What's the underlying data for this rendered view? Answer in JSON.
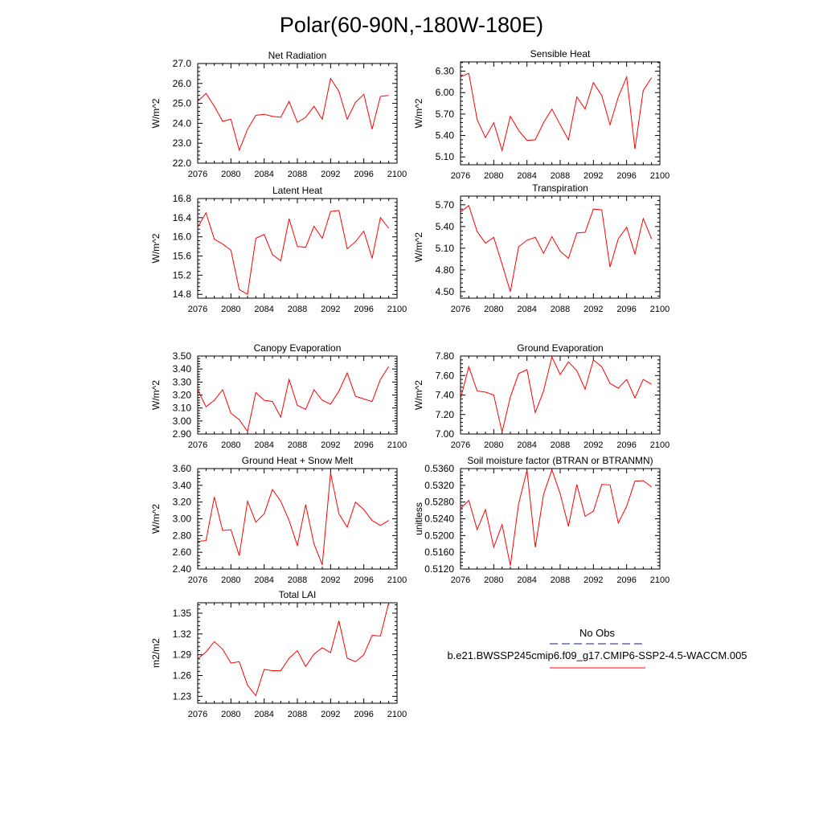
{
  "page": {
    "title": "Polar(60-90N,-180W-180E)"
  },
  "colors": {
    "model_line": "#ff0000",
    "obs_line": "#1a1a8c",
    "axis": "#000000",
    "background": "#ffffff"
  },
  "legend": {
    "obs_label": "No Obs",
    "model_label": "b.e21.BWSSP245cmip6.f09_g17.CMIP6-SSP2-4.5-WACCM.005"
  },
  "chart_data": [
    {
      "type": "line",
      "title": "Net Radiation",
      "ylabel": "W/m^2",
      "xlabel": "",
      "xlim": [
        2076,
        2100
      ],
      "ylim": [
        22.0,
        27.0
      ],
      "xticks": [
        "2076",
        "2080",
        "2084",
        "2088",
        "2092",
        "2096",
        "2100"
      ],
      "yticks": [
        "22.0",
        "23.0",
        "24.0",
        "25.0",
        "26.0",
        "27.0"
      ],
      "x": [
        2076,
        2077,
        2078,
        2079,
        2080,
        2081,
        2082,
        2083,
        2084,
        2085,
        2086,
        2087,
        2088,
        2089,
        2090,
        2091,
        2092,
        2093,
        2094,
        2095,
        2096,
        2097,
        2098,
        2099
      ],
      "series": [
        {
          "values": [
            25.1,
            25.5,
            24.85,
            24.1,
            24.2,
            22.65,
            23.7,
            24.4,
            24.45,
            24.35,
            24.3,
            25.1,
            24.05,
            24.3,
            24.85,
            24.2,
            26.25,
            25.6,
            24.2,
            25.05,
            25.45,
            23.7,
            25.35,
            25.4
          ]
        }
      ]
    },
    {
      "type": "line",
      "title": "Sensible Heat",
      "ylabel": "W/m^2",
      "xlabel": "",
      "xlim": [
        2076,
        2100
      ],
      "ylim": [
        4.99,
        6.43
      ],
      "xticks": [
        "2076",
        "2080",
        "2084",
        "2088",
        "2092",
        "2096",
        "2100"
      ],
      "yticks": [
        "5.10",
        "5.40",
        "5.70",
        "6.00",
        "6.30"
      ],
      "x": [
        2076,
        2077,
        2078,
        2079,
        2080,
        2081,
        2082,
        2083,
        2084,
        2085,
        2086,
        2087,
        2088,
        2089,
        2090,
        2091,
        2092,
        2093,
        2094,
        2095,
        2096,
        2097,
        2098,
        2099
      ],
      "series": [
        {
          "values": [
            6.22,
            6.27,
            5.62,
            5.37,
            5.58,
            5.19,
            5.67,
            5.47,
            5.33,
            5.34,
            5.58,
            5.77,
            5.55,
            5.34,
            5.94,
            5.77,
            6.14,
            5.96,
            5.55,
            5.94,
            6.22,
            5.21,
            6.03,
            6.21
          ]
        }
      ]
    },
    {
      "type": "line",
      "title": "Latent Heat",
      "ylabel": "W/m^2",
      "xlabel": "",
      "xlim": [
        2076,
        2100
      ],
      "ylim": [
        14.72,
        16.8
      ],
      "xticks": [
        "2076",
        "2080",
        "2084",
        "2088",
        "2092",
        "2096",
        "2100"
      ],
      "yticks": [
        "14.8",
        "15.2",
        "15.6",
        "16.0",
        "16.4",
        "16.8"
      ],
      "x": [
        2076,
        2077,
        2078,
        2079,
        2080,
        2081,
        2082,
        2083,
        2084,
        2085,
        2086,
        2087,
        2088,
        2089,
        2090,
        2091,
        2092,
        2093,
        2094,
        2095,
        2096,
        2097,
        2098,
        2099
      ],
      "series": [
        {
          "values": [
            16.2,
            16.5,
            15.95,
            15.85,
            15.72,
            14.9,
            14.8,
            15.97,
            16.05,
            15.63,
            15.5,
            16.38,
            15.8,
            15.78,
            16.22,
            15.97,
            16.53,
            16.55,
            15.75,
            15.9,
            16.12,
            15.55,
            16.4,
            16.18
          ]
        }
      ]
    },
    {
      "type": "line",
      "title": "Transpiration",
      "ylabel": "W/m^2",
      "xlabel": "",
      "xlim": [
        2076,
        2100
      ],
      "ylim": [
        4.41,
        5.82
      ],
      "xticks": [
        "2076",
        "2080",
        "2084",
        "2088",
        "2092",
        "2096",
        "2100"
      ],
      "yticks": [
        "4.50",
        "4.80",
        "5.10",
        "5.40",
        "5.70"
      ],
      "x": [
        2076,
        2077,
        2078,
        2079,
        2080,
        2081,
        2082,
        2083,
        2084,
        2085,
        2086,
        2087,
        2088,
        2089,
        2090,
        2091,
        2092,
        2093,
        2094,
        2095,
        2096,
        2097,
        2098,
        2099
      ],
      "series": [
        {
          "values": [
            5.6,
            5.69,
            5.33,
            5.17,
            5.25,
            4.88,
            4.5,
            5.12,
            5.21,
            5.25,
            5.03,
            5.26,
            5.06,
            4.96,
            5.31,
            5.32,
            5.64,
            5.63,
            4.84,
            5.23,
            5.39,
            5.02,
            5.51,
            5.23
          ]
        }
      ]
    },
    {
      "type": "line",
      "title": "Canopy Evaporation",
      "ylabel": "W/m^2",
      "xlabel": "",
      "xlim": [
        2076,
        2100
      ],
      "ylim": [
        2.9,
        3.5
      ],
      "xticks": [
        "2076",
        "2080",
        "2084",
        "2088",
        "2092",
        "2096",
        "2100"
      ],
      "yticks": [
        "2.90",
        "3.00",
        "3.10",
        "3.20",
        "3.30",
        "3.40",
        "3.50"
      ],
      "x": [
        2076,
        2077,
        2078,
        2079,
        2080,
        2081,
        2082,
        2083,
        2084,
        2085,
        2086,
        2087,
        2088,
        2089,
        2090,
        2091,
        2092,
        2093,
        2094,
        2095,
        2096,
        2097,
        2098,
        2099
      ],
      "series": [
        {
          "values": [
            3.24,
            3.11,
            3.16,
            3.24,
            3.06,
            3.01,
            2.92,
            3.22,
            3.16,
            3.15,
            3.03,
            3.32,
            3.12,
            3.09,
            3.24,
            3.16,
            3.13,
            3.23,
            3.37,
            3.19,
            3.17,
            3.15,
            3.32,
            3.42
          ]
        }
      ]
    },
    {
      "type": "line",
      "title": "Ground Evaporation",
      "ylabel": "W/m^2",
      "xlabel": "",
      "xlim": [
        2076,
        2100
      ],
      "ylim": [
        7.0,
        7.8
      ],
      "xticks": [
        "2076",
        "2080",
        "2084",
        "2088",
        "2092",
        "2096",
        "2100"
      ],
      "yticks": [
        "7.00",
        "7.20",
        "7.40",
        "7.60",
        "7.80"
      ],
      "x": [
        2076,
        2077,
        2078,
        2079,
        2080,
        2081,
        2082,
        2083,
        2084,
        2085,
        2086,
        2087,
        2088,
        2089,
        2090,
        2091,
        2092,
        2093,
        2094,
        2095,
        2096,
        2097,
        2098,
        2099
      ],
      "series": [
        {
          "values": [
            7.36,
            7.69,
            7.44,
            7.43,
            7.4,
            7.02,
            7.38,
            7.62,
            7.66,
            7.22,
            7.44,
            7.79,
            7.61,
            7.74,
            7.65,
            7.46,
            7.76,
            7.69,
            7.52,
            7.47,
            7.56,
            7.37,
            7.56,
            7.51
          ]
        }
      ]
    },
    {
      "type": "line",
      "title": "Ground Heat + Snow Melt",
      "ylabel": "W/m^2",
      "xlabel": "",
      "xlim": [
        2076,
        2100
      ],
      "ylim": [
        2.4,
        3.6
      ],
      "xticks": [
        "2076",
        "2080",
        "2084",
        "2088",
        "2092",
        "2096",
        "2100"
      ],
      "yticks": [
        "2.40",
        "2.60",
        "2.80",
        "3.00",
        "3.20",
        "3.40",
        "3.60"
      ],
      "x": [
        2076,
        2077,
        2078,
        2079,
        2080,
        2081,
        2082,
        2083,
        2084,
        2085,
        2086,
        2087,
        2088,
        2089,
        2090,
        2091,
        2092,
        2093,
        2094,
        2095,
        2096,
        2097,
        2098,
        2099
      ],
      "series": [
        {
          "values": [
            2.73,
            2.74,
            3.26,
            2.86,
            2.87,
            2.56,
            3.21,
            2.96,
            3.06,
            3.35,
            3.21,
            2.98,
            2.68,
            3.17,
            2.7,
            2.45,
            3.55,
            3.06,
            2.9,
            3.2,
            3.11,
            2.98,
            2.92,
            2.98
          ]
        }
      ]
    },
    {
      "type": "line",
      "title": "Soil moisture factor (BTRAN or BTRANMN)",
      "ylabel": "unitless",
      "xlabel": "",
      "xlim": [
        2076,
        2100
      ],
      "ylim": [
        0.512,
        0.536
      ],
      "xticks": [
        "2076",
        "2080",
        "2084",
        "2088",
        "2092",
        "2096",
        "2100"
      ],
      "yticks": [
        "0.5120",
        "0.5160",
        "0.5200",
        "0.5240",
        "0.5280",
        "0.5320",
        "0.5360"
      ],
      "x": [
        2076,
        2077,
        2078,
        2079,
        2080,
        2081,
        2082,
        2083,
        2084,
        2085,
        2086,
        2087,
        2088,
        2089,
        2090,
        2091,
        2092,
        2093,
        2094,
        2095,
        2096,
        2097,
        2098,
        2099
      ],
      "series": [
        {
          "values": [
            0.5264,
            0.5284,
            0.5214,
            0.5262,
            0.5172,
            0.5226,
            0.5128,
            0.5276,
            0.5356,
            0.5172,
            0.5298,
            0.5357,
            0.53,
            0.5222,
            0.5322,
            0.5246,
            0.5258,
            0.5322,
            0.5321,
            0.523,
            0.527,
            0.533,
            0.5331,
            0.5316
          ]
        }
      ]
    },
    {
      "type": "line",
      "title": "Total LAI",
      "ylabel": "m2/m2",
      "xlabel": "",
      "xlim": [
        2076,
        2100
      ],
      "ylim": [
        1.22,
        1.365
      ],
      "xticks": [
        "2076",
        "2080",
        "2084",
        "2088",
        "2092",
        "2096",
        "2100"
      ],
      "yticks": [
        "1.23",
        "1.26",
        "1.29",
        "1.32",
        "1.35"
      ],
      "x": [
        2076,
        2077,
        2078,
        2079,
        2080,
        2081,
        2082,
        2083,
        2084,
        2085,
        2086,
        2087,
        2088,
        2089,
        2090,
        2091,
        2092,
        2093,
        2094,
        2095,
        2096,
        2097,
        2098,
        2099
      ],
      "series": [
        {
          "values": [
            1.284,
            1.294,
            1.309,
            1.298,
            1.278,
            1.28,
            1.246,
            1.231,
            1.269,
            1.267,
            1.267,
            1.285,
            1.296,
            1.273,
            1.291,
            1.3,
            1.293,
            1.339,
            1.285,
            1.28,
            1.29,
            1.318,
            1.317,
            1.365
          ]
        }
      ]
    }
  ]
}
